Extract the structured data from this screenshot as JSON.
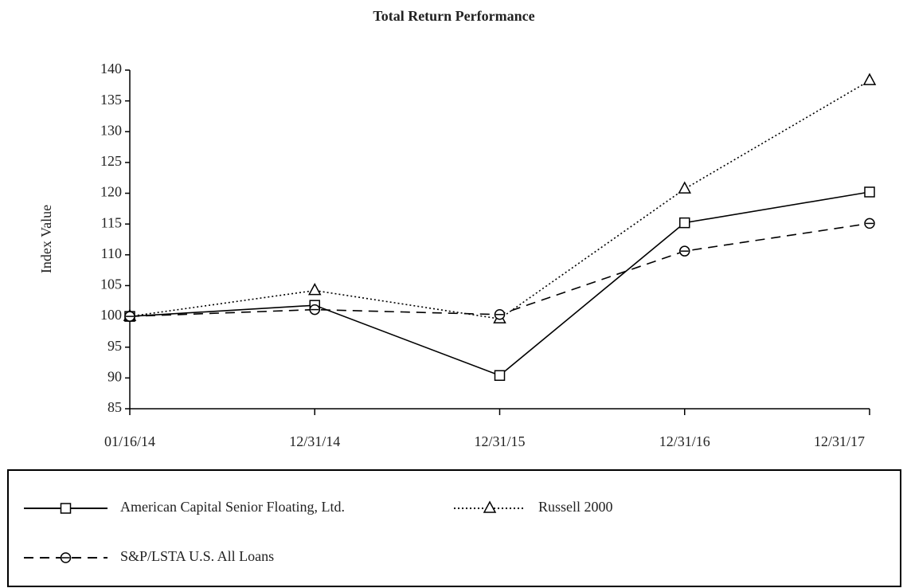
{
  "chart_data": {
    "type": "line",
    "title": "Total Return Performance",
    "ylabel": "Index Value",
    "categories": [
      "01/16/14",
      "12/31/14",
      "12/31/15",
      "12/31/16",
      "12/31/17"
    ],
    "series": [
      {
        "name": "American Capital Senior Floating, Ltd.",
        "color": "#000000",
        "style": "solid",
        "marker": "square",
        "values": [
          100,
          101.8,
          90.4,
          115.2,
          120.2
        ]
      },
      {
        "name": "Russell 2000",
        "color": "#000000",
        "style": "dotted",
        "marker": "triangle",
        "values": [
          100,
          104.2,
          99.6,
          120.7,
          138.3
        ]
      },
      {
        "name": "S&P/LSTA U.S. All Loans",
        "color": "#000000",
        "style": "dashed",
        "marker": "circle",
        "values": [
          100,
          101.1,
          100.3,
          110.6,
          115.1
        ]
      }
    ],
    "ylim": [
      85,
      140
    ],
    "yticks": [
      85,
      90,
      95,
      100,
      105,
      110,
      115,
      120,
      125,
      130,
      135,
      140
    ],
    "grid": false
  }
}
